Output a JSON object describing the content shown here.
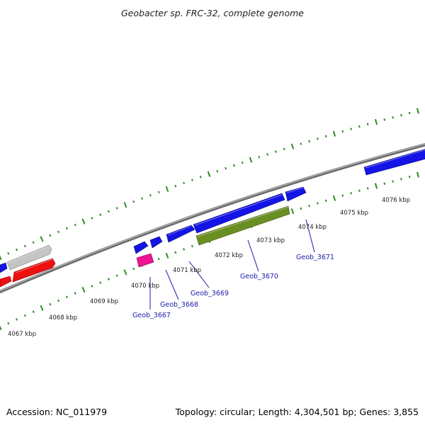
{
  "title": "Geobacter sp. FRC-32, complete genome",
  "footer": {
    "accession": "Accession: NC_011979",
    "stats": "Topology: circular; Length: 4,304,501 bp; Genes: 3,855"
  },
  "colors": {
    "backbone": "#8a8a8a",
    "tick": "#2e8b22",
    "label_line": "#1a1aa8",
    "blue": "#1414e6",
    "red": "#ee1111",
    "gray": "#c4c4c4",
    "green": "#6b8e23",
    "pink": "#ee1493"
  },
  "scale_labels": [
    "4067 kbp",
    "4068 kbp",
    "4069 kbp",
    "4070 kbp",
    "4071 kbp",
    "4072 kbp",
    "4073 kbp",
    "4074 kbp",
    "4075 kbp",
    "4076 kbp"
  ],
  "gene_labels": [
    "Geob_3667",
    "Geob_3668",
    "Geob_3669",
    "Geob_3670",
    "Geob_3671"
  ]
}
